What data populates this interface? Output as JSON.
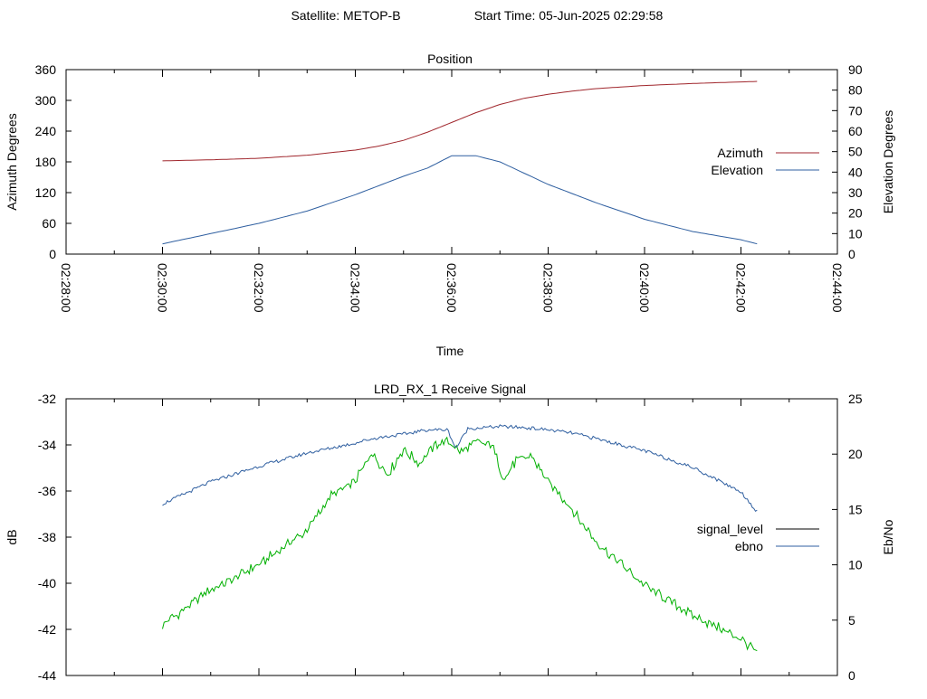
{
  "header": {
    "satellite_text": "Satellite: METOP-B",
    "start_time_text": "Start Time: 05-Jun-2025 02:29:58"
  },
  "colors": {
    "azimuth": "#a0262c",
    "elevation": "#2f5fa0",
    "signal_level": "#000000",
    "ebno_line": "#2f5fa0",
    "signal_trace": "#00b000",
    "axis": "#000000"
  },
  "chart_data": [
    {
      "type": "line",
      "title": "Position",
      "xlabel": "Time",
      "ylabel": "Azimuth Degrees",
      "y2label": "Elevation Degrees",
      "xlim": [
        "02:28:00",
        "02:44:00"
      ],
      "ylim": [
        0,
        360
      ],
      "y2lim": [
        0,
        90
      ],
      "xticks": [
        "02:28:00",
        "02:30:00",
        "02:32:00",
        "02:34:00",
        "02:36:00",
        "02:38:00",
        "02:40:00",
        "02:42:00",
        "02:44:00"
      ],
      "yticks": [
        "0",
        "60",
        "120",
        "180",
        "240",
        "300",
        "360"
      ],
      "y2ticks": [
        "0",
        "10",
        "20",
        "30",
        "40",
        "50",
        "60",
        "70",
        "80",
        "90"
      ],
      "legend_position": "right",
      "series": [
        {
          "name": "Azimuth",
          "axis": "y",
          "x": [
            "02:30:00",
            "02:31:00",
            "02:32:00",
            "02:33:00",
            "02:34:00",
            "02:34:30",
            "02:35:00",
            "02:35:30",
            "02:36:00",
            "02:36:30",
            "02:37:00",
            "02:37:30",
            "02:38:00",
            "02:38:30",
            "02:39:00",
            "02:40:00",
            "02:41:00",
            "02:42:00",
            "02:42:20"
          ],
          "y": [
            182,
            184,
            187,
            193,
            203,
            211,
            222,
            238,
            257,
            276,
            292,
            304,
            312,
            318,
            323,
            329,
            333,
            336,
            337
          ]
        },
        {
          "name": "Elevation",
          "axis": "y2",
          "x": [
            "02:30:00",
            "02:31:00",
            "02:32:00",
            "02:33:00",
            "02:34:00",
            "02:35:00",
            "02:35:30",
            "02:36:00",
            "02:36:30",
            "02:37:00",
            "02:38:00",
            "02:39:00",
            "02:40:00",
            "02:41:00",
            "02:42:00",
            "02:42:20"
          ],
          "y": [
            5,
            10,
            15,
            21,
            29,
            38,
            42,
            48,
            48,
            45,
            34,
            25,
            17,
            11,
            7,
            5
          ]
        }
      ]
    },
    {
      "type": "line",
      "title": "LRD_RX_1 Receive Signal",
      "xlabel": "",
      "ylabel": "dB",
      "y2label": "Eb/No",
      "xlim": [
        "02:28:00",
        "02:44:00"
      ],
      "ylim": [
        -44,
        -32
      ],
      "y2lim": [
        0,
        25
      ],
      "yticks": [
        "-44",
        "-42",
        "-40",
        "-38",
        "-36",
        "-34",
        "-32"
      ],
      "y2ticks": [
        "0",
        "5",
        "10",
        "15",
        "20",
        "25"
      ],
      "legend_position": "right",
      "series": [
        {
          "name": "signal_level",
          "axis": "y",
          "x": [
            "02:30:00",
            "02:31:00",
            "02:32:00",
            "02:33:00",
            "02:33:30",
            "02:34:00",
            "02:34:20",
            "02:34:40",
            "02:35:00",
            "02:35:20",
            "02:35:40",
            "02:35:55",
            "02:36:10",
            "02:36:30",
            "02:36:50",
            "02:37:05",
            "02:37:20",
            "02:37:40",
            "02:38:00",
            "02:38:30",
            "02:39:00",
            "02:40:00",
            "02:41:00",
            "02:42:00",
            "02:42:20"
          ],
          "y": [
            -41.8,
            -40.3,
            -39.2,
            -37.7,
            -36.2,
            -35.6,
            -34.3,
            -35.3,
            -34.2,
            -34.8,
            -34.0,
            -33.8,
            -34.3,
            -33.9,
            -34.0,
            -35.5,
            -34.7,
            -34.5,
            -35.6,
            -36.8,
            -38.2,
            -40.1,
            -41.4,
            -42.4,
            -43.0
          ]
        },
        {
          "name": "ebno",
          "axis": "y2",
          "x": [
            "02:30:00",
            "02:31:00",
            "02:32:00",
            "02:33:00",
            "02:34:00",
            "02:34:15",
            "02:34:30",
            "02:35:00",
            "02:35:30",
            "02:35:55",
            "02:36:05",
            "02:36:20",
            "02:37:00",
            "02:37:30",
            "02:38:00",
            "02:38:30",
            "02:39:00",
            "02:40:00",
            "02:41:00",
            "02:42:00",
            "02:42:20"
          ],
          "y": [
            15.5,
            17.5,
            18.9,
            20.1,
            21.0,
            21.3,
            21.5,
            21.8,
            22.2,
            22.2,
            20.5,
            22.3,
            22.5,
            22.4,
            22.2,
            21.9,
            21.4,
            20.3,
            18.8,
            16.6,
            14.8
          ]
        }
      ]
    }
  ]
}
